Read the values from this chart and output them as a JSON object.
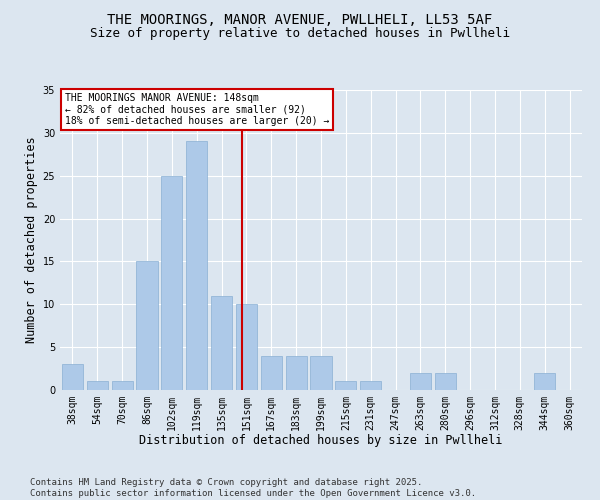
{
  "title1": "THE MOORINGS, MANOR AVENUE, PWLLHELI, LL53 5AF",
  "title2": "Size of property relative to detached houses in Pwllheli",
  "xlabel": "Distribution of detached houses by size in Pwllheli",
  "ylabel": "Number of detached properties",
  "footer": "Contains HM Land Registry data © Crown copyright and database right 2025.\nContains public sector information licensed under the Open Government Licence v3.0.",
  "bins": [
    "38sqm",
    "54sqm",
    "70sqm",
    "86sqm",
    "102sqm",
    "119sqm",
    "135sqm",
    "151sqm",
    "167sqm",
    "183sqm",
    "199sqm",
    "215sqm",
    "231sqm",
    "247sqm",
    "263sqm",
    "280sqm",
    "296sqm",
    "312sqm",
    "328sqm",
    "344sqm",
    "360sqm"
  ],
  "values": [
    3,
    1,
    1,
    15,
    25,
    29,
    11,
    10,
    4,
    4,
    4,
    1,
    1,
    0,
    2,
    2,
    0,
    0,
    0,
    2,
    0
  ],
  "bar_color": "#adc9e8",
  "bar_edge_color": "#8ab0d4",
  "annotation_text": "THE MOORINGS MANOR AVENUE: 148sqm\n← 82% of detached houses are smaller (92)\n18% of semi-detached houses are larger (20) →",
  "vline_color": "#cc0000",
  "ylim": [
    0,
    35
  ],
  "yticks": [
    0,
    5,
    10,
    15,
    20,
    25,
    30,
    35
  ],
  "background_color": "#dce6f0",
  "grid_color": "#ffffff",
  "annotation_box_color": "#ffffff",
  "annotation_border_color": "#cc0000",
  "title_fontsize": 10,
  "subtitle_fontsize": 9,
  "tick_fontsize": 7,
  "label_fontsize": 8.5,
  "footer_fontsize": 6.5
}
